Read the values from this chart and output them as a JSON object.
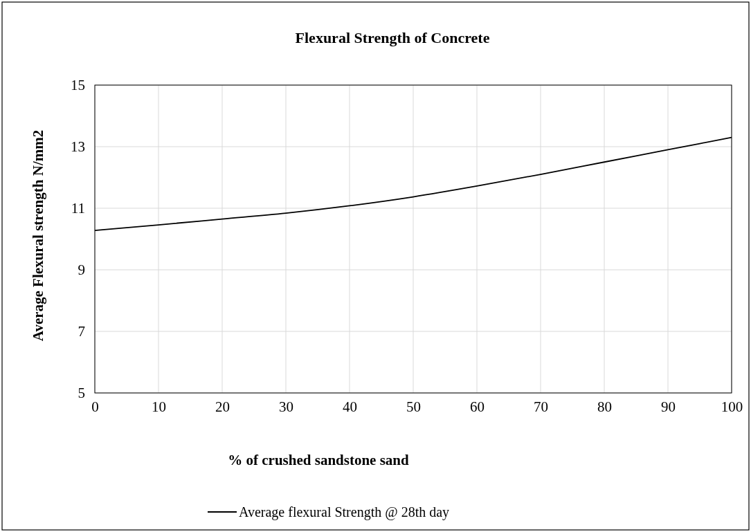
{
  "chart_data": {
    "type": "line",
    "title": "Flexural Strength of Concrete",
    "xlabel": "% of crushed sandstone sand",
    "ylabel": "Average Flexural strength N/mm2",
    "x": [
      0,
      10,
      20,
      30,
      40,
      50,
      60,
      70,
      80,
      90,
      100
    ],
    "series": [
      {
        "name": "Average flexural Strength @ 28th day",
        "color": "#000000",
        "values": [
          10.28,
          10.46,
          10.65,
          10.84,
          11.08,
          11.37,
          11.72,
          12.1,
          12.5,
          12.9,
          13.3
        ]
      }
    ],
    "xlim": [
      0,
      100
    ],
    "xticks": [
      0,
      10,
      20,
      30,
      40,
      50,
      60,
      70,
      80,
      90,
      100
    ],
    "ylim": [
      5,
      15
    ],
    "yticks": [
      5,
      7,
      9,
      11,
      13,
      15
    ],
    "grid": true,
    "legend": "bottom",
    "marker": "none",
    "line_style": "solid"
  }
}
